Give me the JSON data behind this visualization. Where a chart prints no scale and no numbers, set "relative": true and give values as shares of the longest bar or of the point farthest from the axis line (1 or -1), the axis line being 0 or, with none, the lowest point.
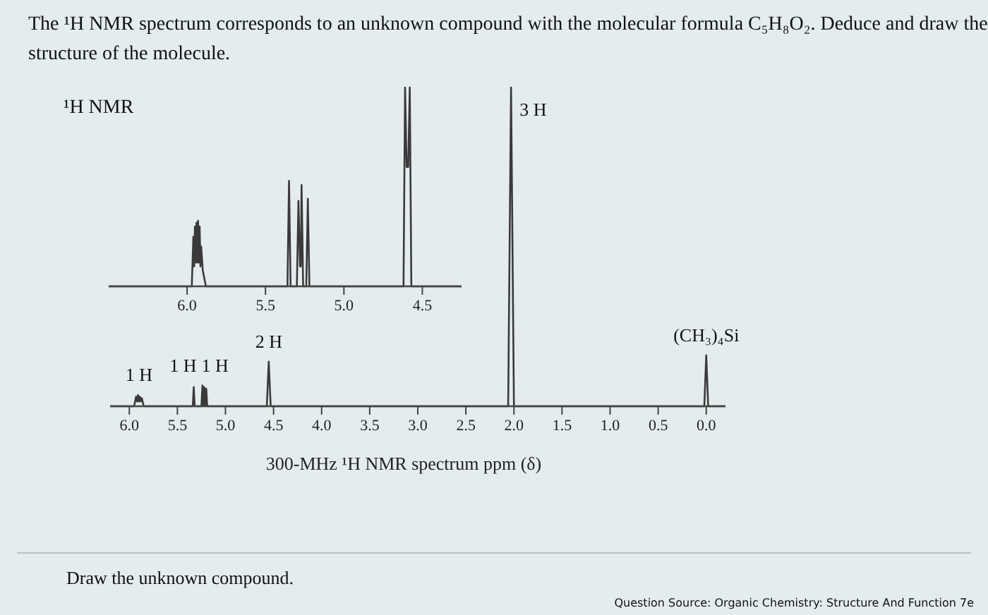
{
  "chart_data": [
    {
      "type": "line",
      "title": "The ¹H NMR spectrum corresponds to an unknown compound with the molecular formula C₅H₈O₂. Deduce and draw the structure of the molecule.",
      "xlabel": "300-MHz ¹H NMR spectrum ppm (δ)",
      "relative": true,
      "xlim": [
        6.2,
        -0.2
      ],
      "xticks": [
        {
          "value": 6,
          "label": "6.0"
        },
        {
          "value": 5.5,
          "label": "5.5"
        },
        {
          "value": 5,
          "label": "5.0"
        },
        {
          "value": 4.5,
          "label": "4.5"
        },
        {
          "value": 4,
          "label": "4.0"
        },
        {
          "value": 3.5,
          "label": "3.5"
        },
        {
          "value": 3,
          "label": "3.0"
        },
        {
          "value": 2.5,
          "label": "2.5"
        },
        {
          "value": 2,
          "label": "2.0"
        },
        {
          "value": 1.5,
          "label": "1.5"
        },
        {
          "value": 1,
          "label": "1.0"
        },
        {
          "value": 0.5,
          "label": "0.5"
        },
        {
          "value": 0,
          "label": "0.0"
        }
      ],
      "series": [
        {
          "color": "#3a3a3a",
          "x": [
            6.2,
            5.95,
            5.93,
            5.92,
            5.91,
            5.9,
            5.89,
            5.88,
            5.87,
            5.85,
            5.34,
            5.33,
            5.32,
            5.25,
            5.24,
            5.23,
            5.22,
            5.21,
            5.2,
            5.19,
            4.57,
            4.55,
            4.53,
            2.06,
            2.03,
            2.0,
            0.02,
            0,
            -0.02,
            -0.2
          ],
          "values": [
            0,
            0,
            0.03,
            0.015,
            0.035,
            0.015,
            0.03,
            0.015,
            0.025,
            0,
            0,
            0.06,
            0,
            0,
            0.065,
            0,
            0.06,
            0,
            0.055,
            0,
            0,
            0.14,
            0,
            0,
            1,
            0,
            0,
            0.16,
            0,
            0
          ]
        }
      ],
      "annotations": [
        {
          "text": "3 H",
          "x": 2.03,
          "y": 1
        },
        {
          "text": "2 H",
          "x": 4.55,
          "y": 0.14
        },
        {
          "text": "1 H",
          "x": 5.33,
          "y": 0.065
        },
        {
          "text": "1 H",
          "x": 5.22,
          "y": 0.065
        },
        {
          "text": "1 H",
          "x": 5.9,
          "y": 0.035
        },
        {
          "text": "(CH₃)₄Si",
          "x": 0,
          "y": 0.16
        },
        "Draw the unknown compound.",
        "Question Source: Organic Chemistry: Structure And Function 7e"
      ]
    },
    {
      "type": "line",
      "title": "¹H NMR",
      "relative": true,
      "xlim": [
        6.5,
        4.25
      ],
      "xticks": [
        {
          "value": 6,
          "label": "6.0"
        },
        {
          "value": 5.5,
          "label": "5.5"
        },
        {
          "value": 5,
          "label": "5.0"
        },
        {
          "value": 4.5,
          "label": "4.5"
        }
      ],
      "series": [
        {
          "color": "#3a3a3a",
          "x": [
            6.5,
            5.97,
            5.96,
            5.955,
            5.95,
            5.945,
            5.94,
            5.935,
            5.93,
            5.925,
            5.92,
            5.915,
            5.91,
            5.9,
            5.88,
            5.36,
            5.35,
            5.34,
            5.3,
            5.29,
            5.28,
            5.275,
            5.27,
            5.26,
            5.24,
            5.23,
            5.22,
            4.62,
            4.61,
            4.6,
            4.59,
            4.58,
            4.57,
            4.25
          ],
          "values": [
            0,
            0,
            0.25,
            0.1,
            0.3,
            0.12,
            0.32,
            0.12,
            0.33,
            0.12,
            0.3,
            0.1,
            0.2,
            0.08,
            0,
            0,
            0.53,
            0,
            0,
            0.43,
            0.1,
            0.1,
            0.51,
            0,
            0,
            0.44,
            0,
            0,
            1,
            0.6,
            0.6,
            1,
            0,
            0
          ]
        }
      ]
    }
  ]
}
